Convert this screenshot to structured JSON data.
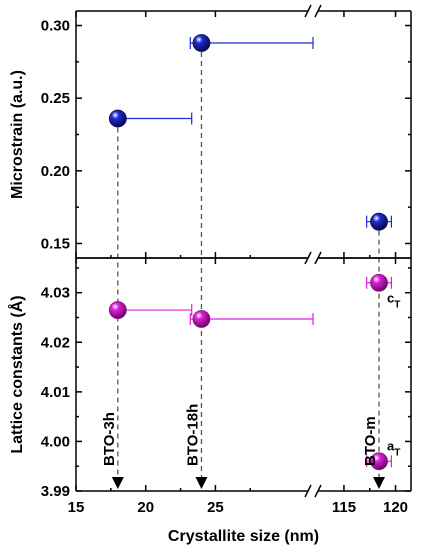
{
  "chart_data": {
    "type": "scatter",
    "x_axis": {
      "label": "Crystallite size (nm)",
      "broken": true,
      "segments": [
        {
          "range": [
            15,
            32
          ],
          "ticks": [
            15,
            20,
            25
          ]
        },
        {
          "range": [
            112,
            121.5
          ],
          "ticks": [
            115,
            120
          ]
        }
      ],
      "tick_labels": [
        "15",
        "20",
        "25",
        "115",
        "120"
      ]
    },
    "panels": [
      {
        "id": "microstrain",
        "ylabel": "Microstrain (a.u.)",
        "ylim": [
          0.14,
          0.31
        ],
        "yticks": [
          0.15,
          0.2,
          0.25,
          0.3
        ],
        "ytick_labels": [
          "0.15",
          "0.20",
          "0.25",
          "0.30"
        ],
        "color": "#1f2ad6",
        "series": [
          {
            "points": [
              {
                "x": 18,
                "y": 0.236,
                "xerr_low": 0,
                "xerr_high": 5.3
              },
              {
                "x": 24,
                "y": 0.288,
                "xerr_low": 0.8,
                "xerr_high": 8.0
              },
              {
                "x": 118.4,
                "y": 0.165,
                "xerr_low": 1.2,
                "xerr_high": 1.2
              }
            ]
          }
        ]
      },
      {
        "id": "lattice",
        "ylabel": "Lattice constants (Å)",
        "ylim": [
          3.99,
          4.037
        ],
        "yticks": [
          3.99,
          4.0,
          4.01,
          4.02,
          4.03
        ],
        "ytick_labels": [
          "3.99",
          "4.00",
          "4.01",
          "4.02",
          "4.03"
        ],
        "color": "#e01fd9",
        "series": [
          {
            "points": [
              {
                "x": 18,
                "y": 4.0265,
                "xerr_low": 0,
                "xerr_high": 5.3
              },
              {
                "x": 24,
                "y": 4.0247,
                "xerr_low": 0.8,
                "xerr_high": 8.0
              },
              {
                "x": 118.4,
                "y": 4.032,
                "xerr_low": 1.2,
                "xerr_high": 1.2
              },
              {
                "x": 118.4,
                "y": 3.996,
                "xerr_low": 1.2,
                "xerr_high": 1.2
              }
            ]
          }
        ],
        "param_labels": [
          {
            "base": "c",
            "sub": "T",
            "x": 118.4,
            "y": 4.029
          },
          {
            "base": "a",
            "sub": "T",
            "x": 118.4,
            "y": 3.9992
          }
        ]
      }
    ],
    "samples": [
      {
        "label": "BTO-3h",
        "x": 18
      },
      {
        "label": "BTO-18h",
        "x": 24
      },
      {
        "label": "BTO-m",
        "x": 118.4
      }
    ],
    "grid": false,
    "legend": "none"
  }
}
